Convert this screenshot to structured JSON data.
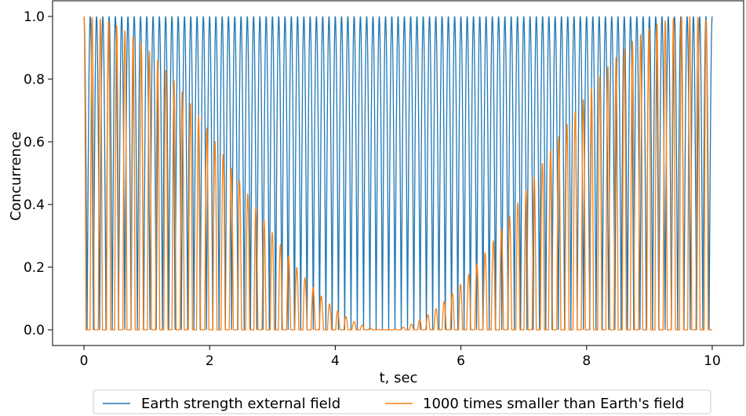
{
  "chart_data": {
    "type": "line",
    "xlabel": "t, sec",
    "ylabel": "Concurrence",
    "xlim": [
      -0.5,
      10.5
    ],
    "ylim": [
      -0.05,
      1.05
    ],
    "x_ticks": [
      0,
      2,
      4,
      6,
      8,
      10
    ],
    "x_tick_labels": [
      "0",
      "2",
      "4",
      "6",
      "8",
      "10"
    ],
    "y_ticks": [
      0.0,
      0.2,
      0.4,
      0.6,
      0.8,
      1.0
    ],
    "y_tick_labels": [
      "0.0",
      "0.2",
      "0.4",
      "0.6",
      "0.8",
      "1.0"
    ],
    "grid": false,
    "legend_position": "bottom-center",
    "series": [
      {
        "name": "Earth strength external field",
        "color": "#1f77b4",
        "model": "abs(cos(pi*t/period))",
        "period": 0.1,
        "t_end": 10.0,
        "envelope": "none",
        "approx_cycles": 100
      },
      {
        "name": "1000 times smaller than Earth's field",
        "color": "#ff7f0e",
        "model": "max(0, cos(2*pi*t/period)) * envelope(t)",
        "period": 0.1303,
        "t_end": 10.0,
        "envelope": "cos^2(pi*t/9.6)",
        "envelope_min_t": 4.8,
        "approx_cycles": 77
      }
    ]
  }
}
